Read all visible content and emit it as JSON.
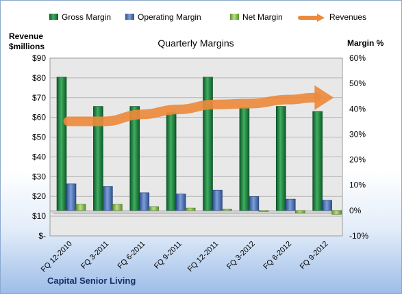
{
  "chart_data": {
    "type": "bar",
    "title": "Quarterly Margins",
    "left_axis_label_line1": "Revenue",
    "left_axis_label_line2": "$millions",
    "right_axis_label": "Margin %",
    "footer": "Capital Senior Living",
    "categories": [
      "FQ 12-2010",
      "FQ 3-2011",
      "FQ 6-2011",
      "FQ 9-2011",
      "FQ 12-2011",
      "FQ 3-2012",
      "FQ 6-2012",
      "FQ 9-2012"
    ],
    "series": [
      {
        "name": "Gross Margin",
        "axis": "right",
        "color": "#1e7a3c",
        "values": [
          52.5,
          41,
          41,
          38.5,
          52.5,
          40.5,
          41,
          39
        ]
      },
      {
        "name": "Operating Margin",
        "axis": "right",
        "color": "#4a6fb5",
        "values": [
          10.5,
          9.5,
          7,
          6.5,
          8,
          5.5,
          4.5,
          4
        ]
      },
      {
        "name": "Net Margin",
        "axis": "right",
        "color": "#8fc45a",
        "values": [
          2.5,
          2.5,
          1.5,
          1,
          0.5,
          0,
          -1,
          -1.5
        ]
      },
      {
        "name": "Revenues",
        "axis": "left",
        "color": "#ec8a3c",
        "values": [
          58,
          58,
          61.5,
          64,
          66.5,
          67,
          69,
          70
        ]
      }
    ],
    "left_axis": {
      "min": 0,
      "max": 90,
      "step": 10,
      "tick_labels": [
        "$-",
        "$10",
        "$20",
        "$30",
        "$40",
        "$50",
        "$60",
        "$70",
        "$80",
        "$90"
      ]
    },
    "right_axis": {
      "min": -10,
      "max": 60,
      "step": 10,
      "tick_labels": [
        "-10%",
        "0%",
        "10%",
        "20%",
        "30%",
        "40%",
        "50%",
        "60%"
      ]
    },
    "grid": true,
    "legend_position": "top"
  }
}
